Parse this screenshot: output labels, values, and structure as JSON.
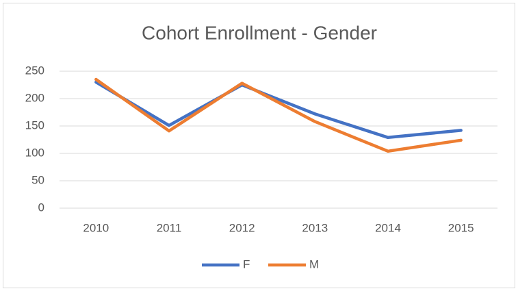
{
  "chart_data": {
    "type": "line",
    "title": "Cohort Enrollment - Gender",
    "categories": [
      "2010",
      "2011",
      "2012",
      "2013",
      "2014",
      "2015"
    ],
    "series": [
      {
        "name": "F",
        "color": "#4472c4",
        "values": [
          230,
          151,
          225,
          172,
          129,
          142
        ]
      },
      {
        "name": "M",
        "color": "#ed7d31",
        "values": [
          235,
          141,
          228,
          158,
          104,
          124
        ]
      }
    ],
    "ylim": [
      0,
      250
    ],
    "yticks": [
      0,
      50,
      100,
      150,
      200,
      250
    ],
    "grid": true,
    "legend": "bottom"
  }
}
